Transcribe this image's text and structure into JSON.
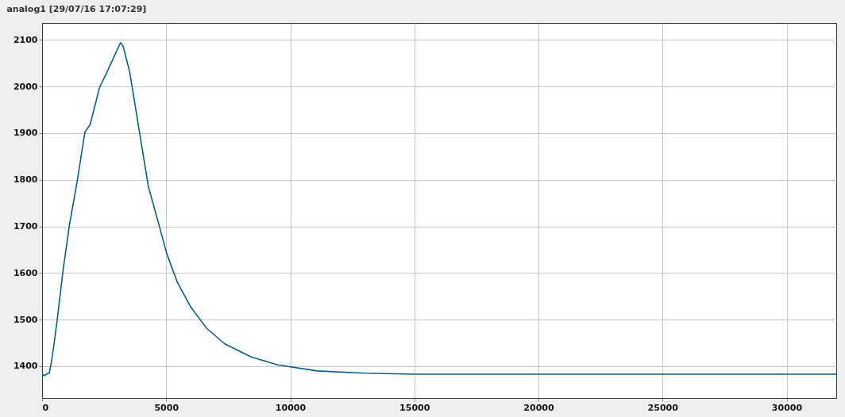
{
  "chart_data": {
    "type": "line",
    "title": "analog1  [29/07/16 17:07:29]",
    "x": [
      0,
      100,
      200,
      290,
      390,
      500,
      610,
      850,
      1105,
      1425,
      1725,
      1935,
      2310,
      2575,
      2895,
      3160,
      3265,
      3530,
      3960,
      4280,
      4705,
      5020,
      5450,
      5980,
      6620,
      7360,
      8425,
      9490,
      11090,
      13000,
      15000,
      17500,
      20000,
      22500,
      25000,
      27500,
      30000,
      32000
    ],
    "series": [
      {
        "color": "#0a5f86",
        "values": [
          1383,
          1380,
          1384,
          1385,
          1414,
          1455,
          1500,
          1608,
          1704,
          1800,
          1902,
          1918,
          1997,
          2026,
          2063,
          2094,
          2086,
          2031,
          1890,
          1786,
          1704,
          1642,
          1580,
          1528,
          1482,
          1448,
          1420,
          1403,
          1390,
          1385,
          1383,
          1383,
          1383,
          1383,
          1383,
          1383,
          1383,
          1383
        ]
      }
    ],
    "xlim": [
      0,
      32000
    ],
    "xticks": [
      0,
      5000,
      10000,
      15000,
      20000,
      25000,
      30000
    ],
    "ylim": [
      1332,
      2136
    ],
    "yticks": [
      1400,
      1500,
      1600,
      1700,
      1800,
      1900,
      2000,
      2100
    ],
    "grid": true,
    "marker": "none",
    "line_style": "solid"
  }
}
